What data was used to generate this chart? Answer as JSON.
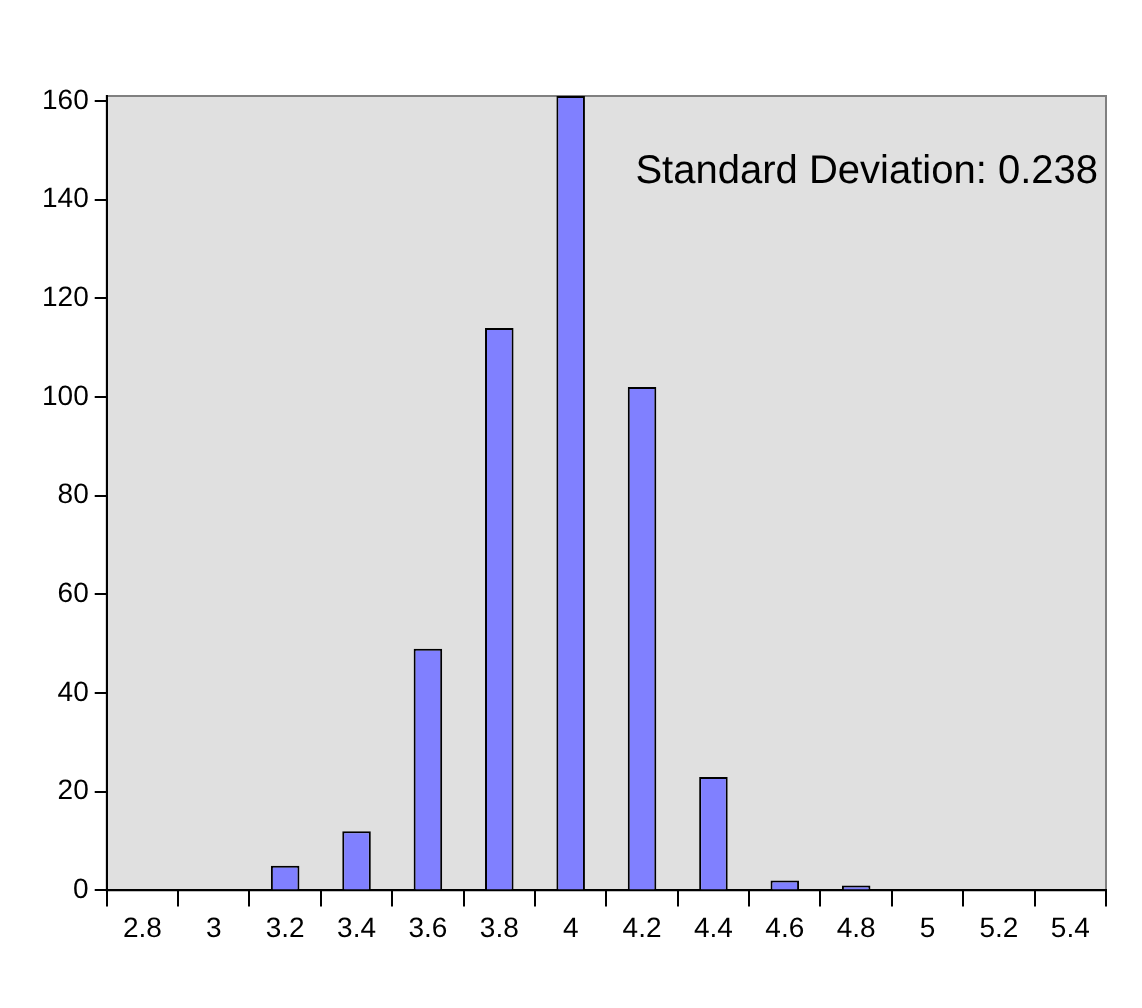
{
  "chart_data": {
    "type": "bar",
    "categories": [
      "2.8",
      "3",
      "3.2",
      "3.4",
      "3.6",
      "3.8",
      "4",
      "4.2",
      "4.4",
      "4.6",
      "4.8",
      "5",
      "5.2",
      "5.4"
    ],
    "values": [
      0,
      0,
      5,
      12,
      49,
      114,
      161,
      102,
      23,
      2,
      1,
      0,
      0,
      0
    ],
    "color": "#8080ff",
    "ylim": [
      0,
      161
    ],
    "yticks": [
      0,
      20,
      40,
      60,
      80,
      100,
      120,
      140,
      160
    ],
    "annotations": [
      "Standard Deviation: 0.238"
    ],
    "legend": false,
    "grid": false
  }
}
